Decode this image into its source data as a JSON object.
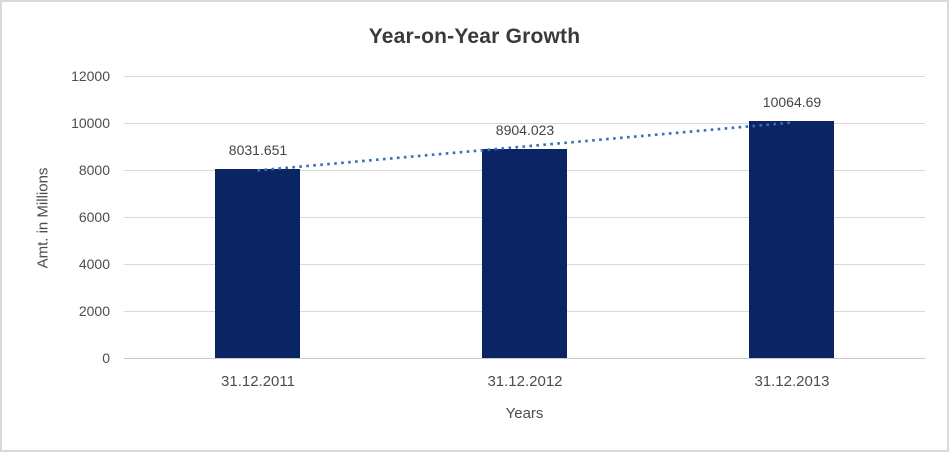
{
  "window": {
    "background": "#ffffff",
    "border_color": "#d9d9d9"
  },
  "chart_data": {
    "type": "bar",
    "title": "Year-on-Year Growth",
    "categories": [
      "31.12.2011",
      "31.12.2012",
      "31.12.2013"
    ],
    "values": [
      8031.651,
      8904.023,
      10064.69
    ],
    "value_labels": [
      "8031.651",
      "8904.023",
      "10064.69"
    ],
    "xlabel": "Years",
    "ylabel": "Amt. in Millions",
    "ylim": [
      0,
      12000
    ],
    "yticks": [
      0,
      2000,
      4000,
      6000,
      8000,
      10000,
      12000
    ],
    "grid": true,
    "legend": "none",
    "bar_color": "#0b2463",
    "trendline": {
      "type": "linear",
      "style": "dotted",
      "color": "#3a6eb5"
    },
    "text_color": "#4d4d4d",
    "gridline_color": "#d9d9d9",
    "axis_line_color": "#c9c9c9"
  }
}
